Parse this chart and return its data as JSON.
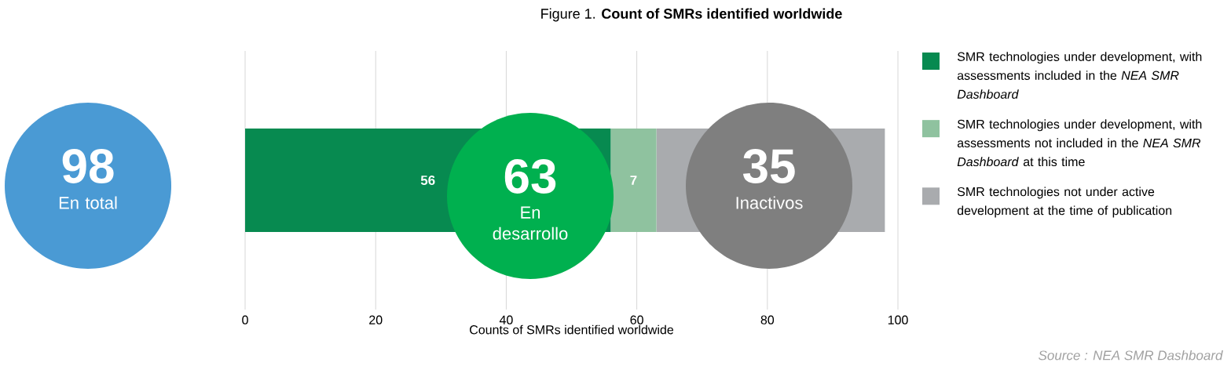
{
  "chart_data": {
    "type": "bar",
    "orientation": "horizontal",
    "stacked": true,
    "title": "Figure 1. **Count of SMRs identified worldwide**",
    "xlabel": "Counts of SMRs identified worldwide",
    "categories": [
      null
    ],
    "series": [
      {
        "name": "SMR technologies under development, with assessments included in the *NEA SMR Dashboard*",
        "color": "#078a50",
        "values": [
          56
        ],
        "value_labels": [
          "56"
        ]
      },
      {
        "name": "SMR technologies under development, with assessments not included in the *NEA SMR Dashboard* at this time",
        "color": "#8fc29f",
        "values": [
          7
        ],
        "value_labels": [
          "7"
        ]
      },
      {
        "name": "SMR technologies not under active development at the time of publication",
        "color": "#a9abae",
        "values": [
          35
        ],
        "value_labels": [
          null
        ]
      }
    ],
    "xlim": [
      0,
      100
    ],
    "xticks": [
      0,
      20,
      40,
      60,
      80,
      100
    ],
    "grid": "x",
    "legend": "right",
    "tick_labels": "x",
    "annotations": [
      "98",
      "En total",
      "63",
      "En desarrollo",
      "35",
      "Inactivos",
      "Source : NEA SMR Dashboard"
    ]
  }
}
